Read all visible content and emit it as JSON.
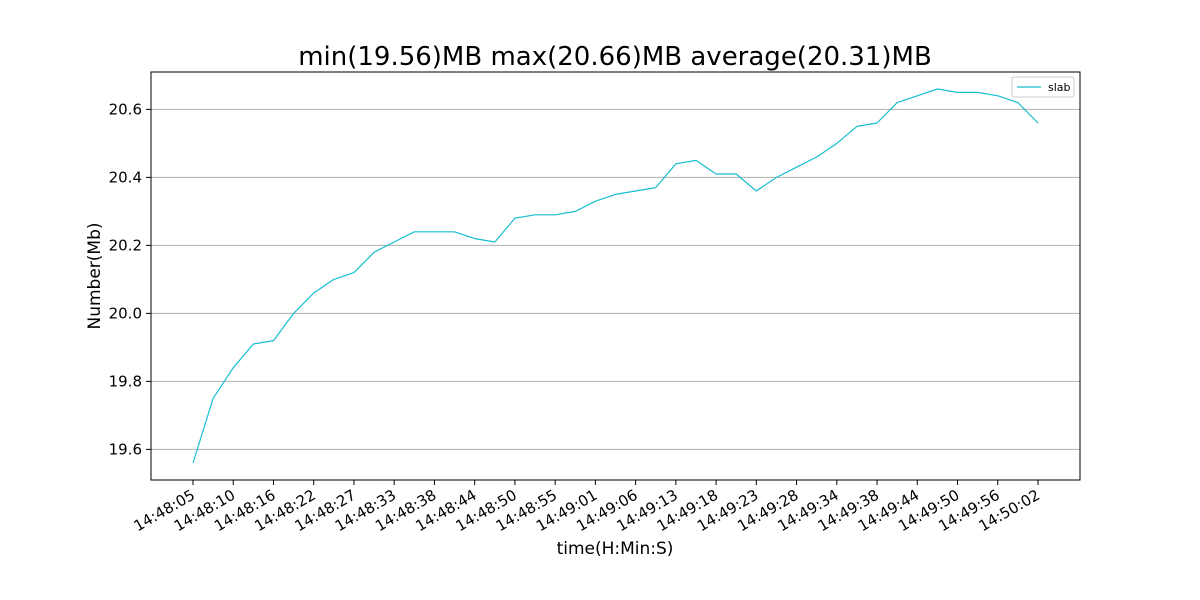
{
  "chart_data": {
    "type": "line",
    "title": "min(19.56)MB max(20.66)MB average(20.31)MB",
    "xlabel": "time(H:Min:S)",
    "ylabel": "Number(Mb)",
    "x_tick_labels": [
      "14:48:05",
      "14:48:10",
      "14:48:16",
      "14:48:22",
      "14:48:27",
      "14:48:33",
      "14:48:38",
      "14:48:44",
      "14:48:50",
      "14:48:55",
      "14:49:01",
      "14:49:06",
      "14:49:13",
      "14:49:18",
      "14:49:23",
      "14:49:28",
      "14:49:34",
      "14:49:38",
      "14:49:44",
      "14:49:50",
      "14:49:56",
      "14:50:02"
    ],
    "y_ticks": [
      19.6,
      19.8,
      20.0,
      20.2,
      20.4,
      20.6
    ],
    "y_tick_labels": [
      "19.6",
      "19.8",
      "20.0",
      "20.2",
      "20.4",
      "20.6"
    ],
    "ylim": [
      19.51,
      20.71
    ],
    "grid": "horizontal",
    "legend_position": "top-right",
    "series": [
      {
        "name": "slab",
        "color": "#17becf",
        "values": [
          19.56,
          19.75,
          19.84,
          19.91,
          19.92,
          20.0,
          20.06,
          20.1,
          20.12,
          20.18,
          20.21,
          20.24,
          20.24,
          20.24,
          20.22,
          20.21,
          20.28,
          20.29,
          20.29,
          20.3,
          20.33,
          20.35,
          20.36,
          20.37,
          20.44,
          20.45,
          20.41,
          20.41,
          20.36,
          20.4,
          20.43,
          20.46,
          20.5,
          20.55,
          20.56,
          20.62,
          20.64,
          20.66,
          20.65,
          20.65,
          20.64,
          20.62,
          20.56
        ]
      }
    ]
  }
}
